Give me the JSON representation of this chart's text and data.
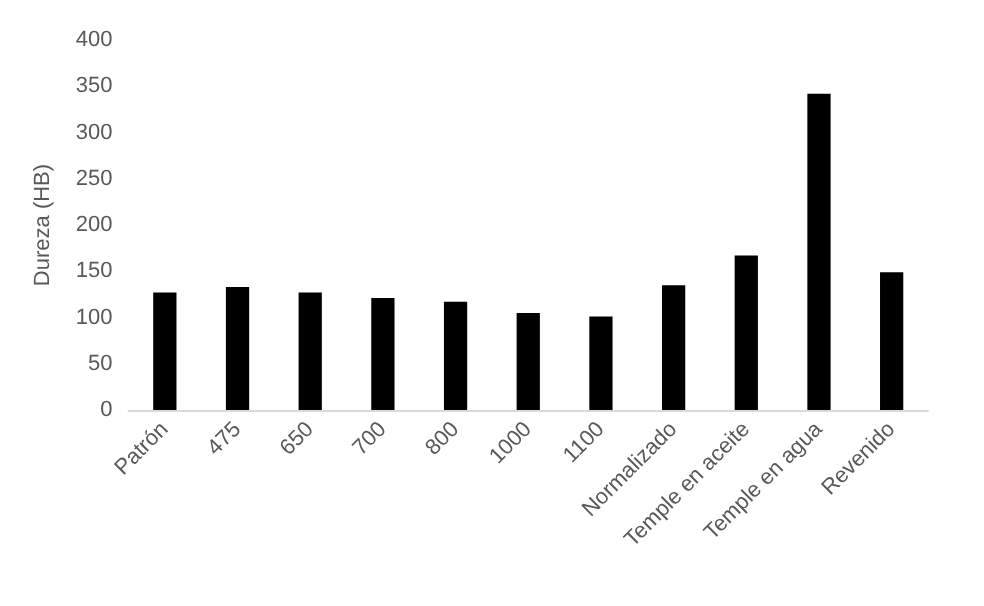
{
  "chart_data": {
    "type": "bar",
    "ylabel": "Dureza (HB)",
    "categories": [
      "Patrón",
      "475",
      "650",
      "700",
      "800",
      "1000",
      "1100",
      "Normalizado",
      "Temple en aceite",
      "Temple en agua",
      "Revenido"
    ],
    "values": [
      127,
      133,
      127,
      121,
      117,
      105,
      101,
      135,
      167,
      342,
      149
    ],
    "color": "#000000",
    "ylim": [
      0,
      400
    ],
    "yticks": [
      0,
      50,
      100,
      150,
      200,
      250,
      300,
      350,
      400
    ],
    "grid": false
  }
}
